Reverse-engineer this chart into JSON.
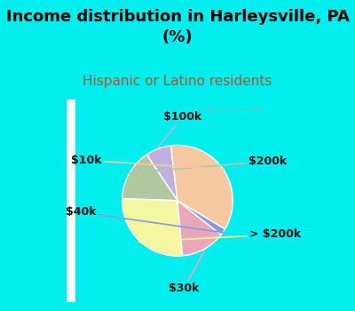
{
  "title": "Income distribution in Harleysville, PA\n(%)",
  "subtitle": "Hispanic or Latino residents",
  "labels": [
    "$100k",
    "$200k",
    "> $200k",
    "$30k",
    "$40k",
    "$10k"
  ],
  "sizes": [
    7.5,
    15.0,
    27.0,
    13.0,
    2.0,
    35.5
  ],
  "colors": [
    "#c0b0e0",
    "#b0c8a0",
    "#f5f7a0",
    "#e8a8b8",
    "#8899dd",
    "#f5c8a0"
  ],
  "title_fontsize": 13,
  "subtitle_fontsize": 11,
  "subtitle_color": "#c05020",
  "bg_color": "#00eeee",
  "label_fontsize": 9,
  "startangle": 97,
  "watermark": "City-Data.com"
}
